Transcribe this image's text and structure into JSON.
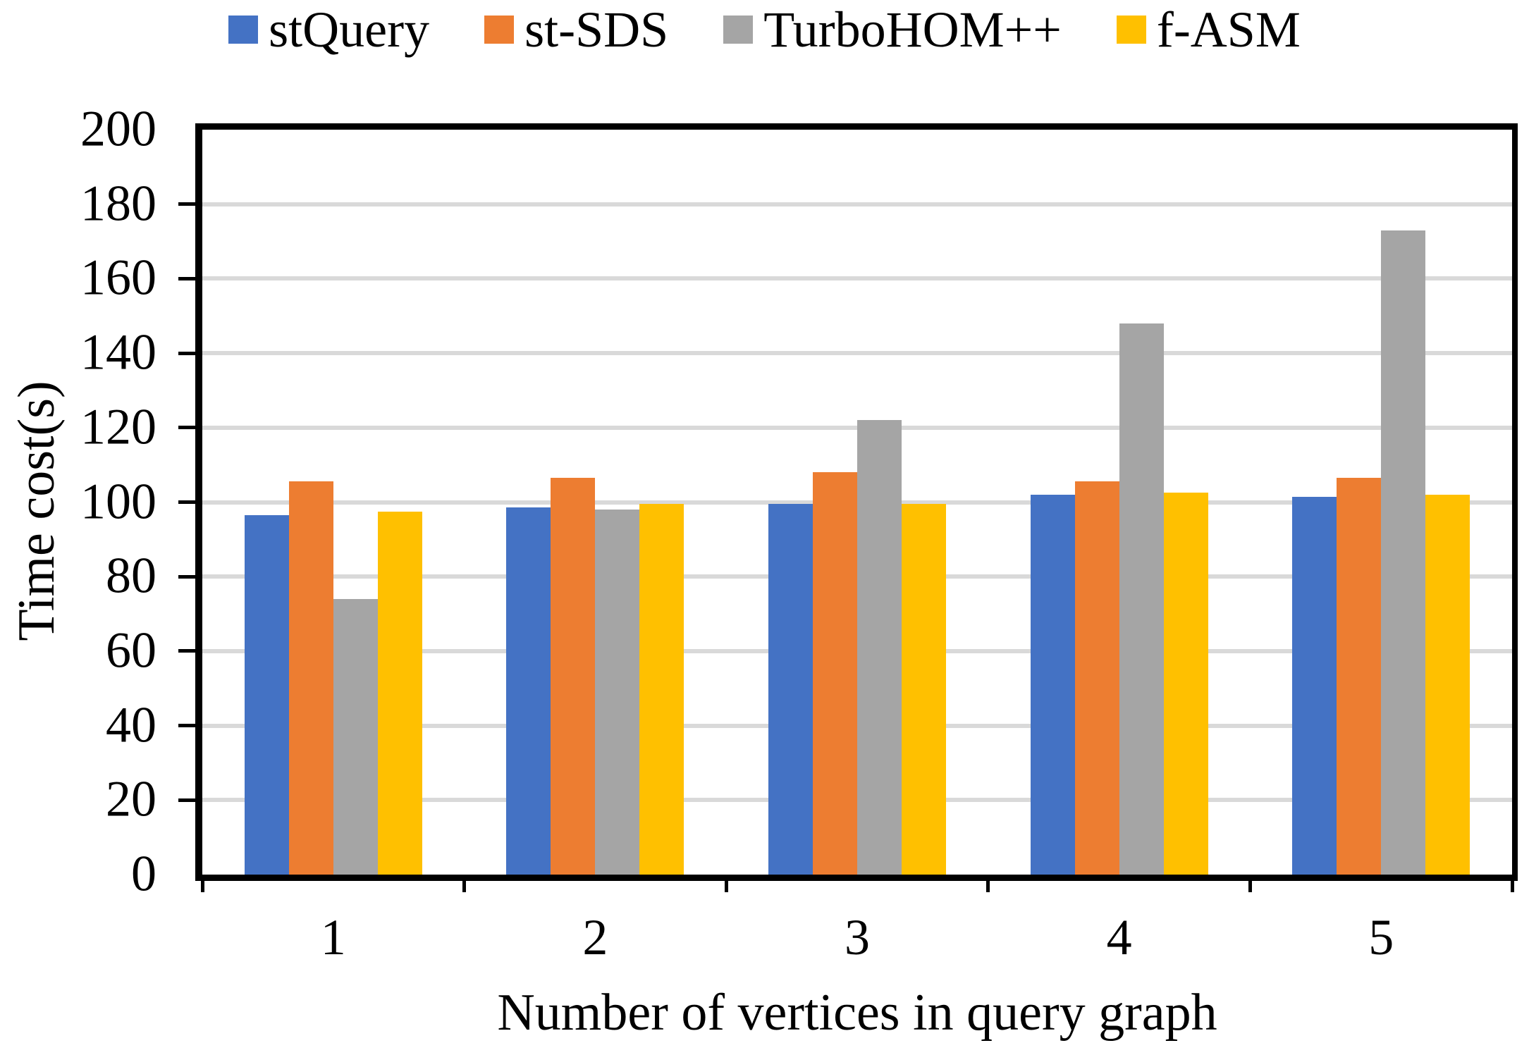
{
  "chart_data": {
    "type": "bar",
    "title": "",
    "xlabel": "Number of vertices in query graph",
    "ylabel": "Time cost(s)",
    "categories": [
      "1",
      "2",
      "3",
      "4",
      "5"
    ],
    "series": [
      {
        "name": "stQuery",
        "color": "#4472C4",
        "values": [
          96.5,
          98.5,
          99.5,
          102,
          101.5
        ]
      },
      {
        "name": "st-SDS",
        "color": "#ED7D31",
        "values": [
          105.5,
          106.5,
          108,
          105.5,
          106.5
        ]
      },
      {
        "name": "TurboHOM++",
        "color": "#A5A5A5",
        "values": [
          74,
          98,
          122,
          148,
          173
        ]
      },
      {
        "name": "f-ASM",
        "color": "#FFC000",
        "values": [
          97.5,
          99.5,
          99.5,
          102.5,
          102
        ]
      }
    ],
    "ylim": [
      0,
      200
    ],
    "ytick_interval": 20,
    "grid": "horizontal",
    "gridline_color": "#D9D9D9",
    "axis_color": "#000000",
    "legend_position": "top"
  }
}
